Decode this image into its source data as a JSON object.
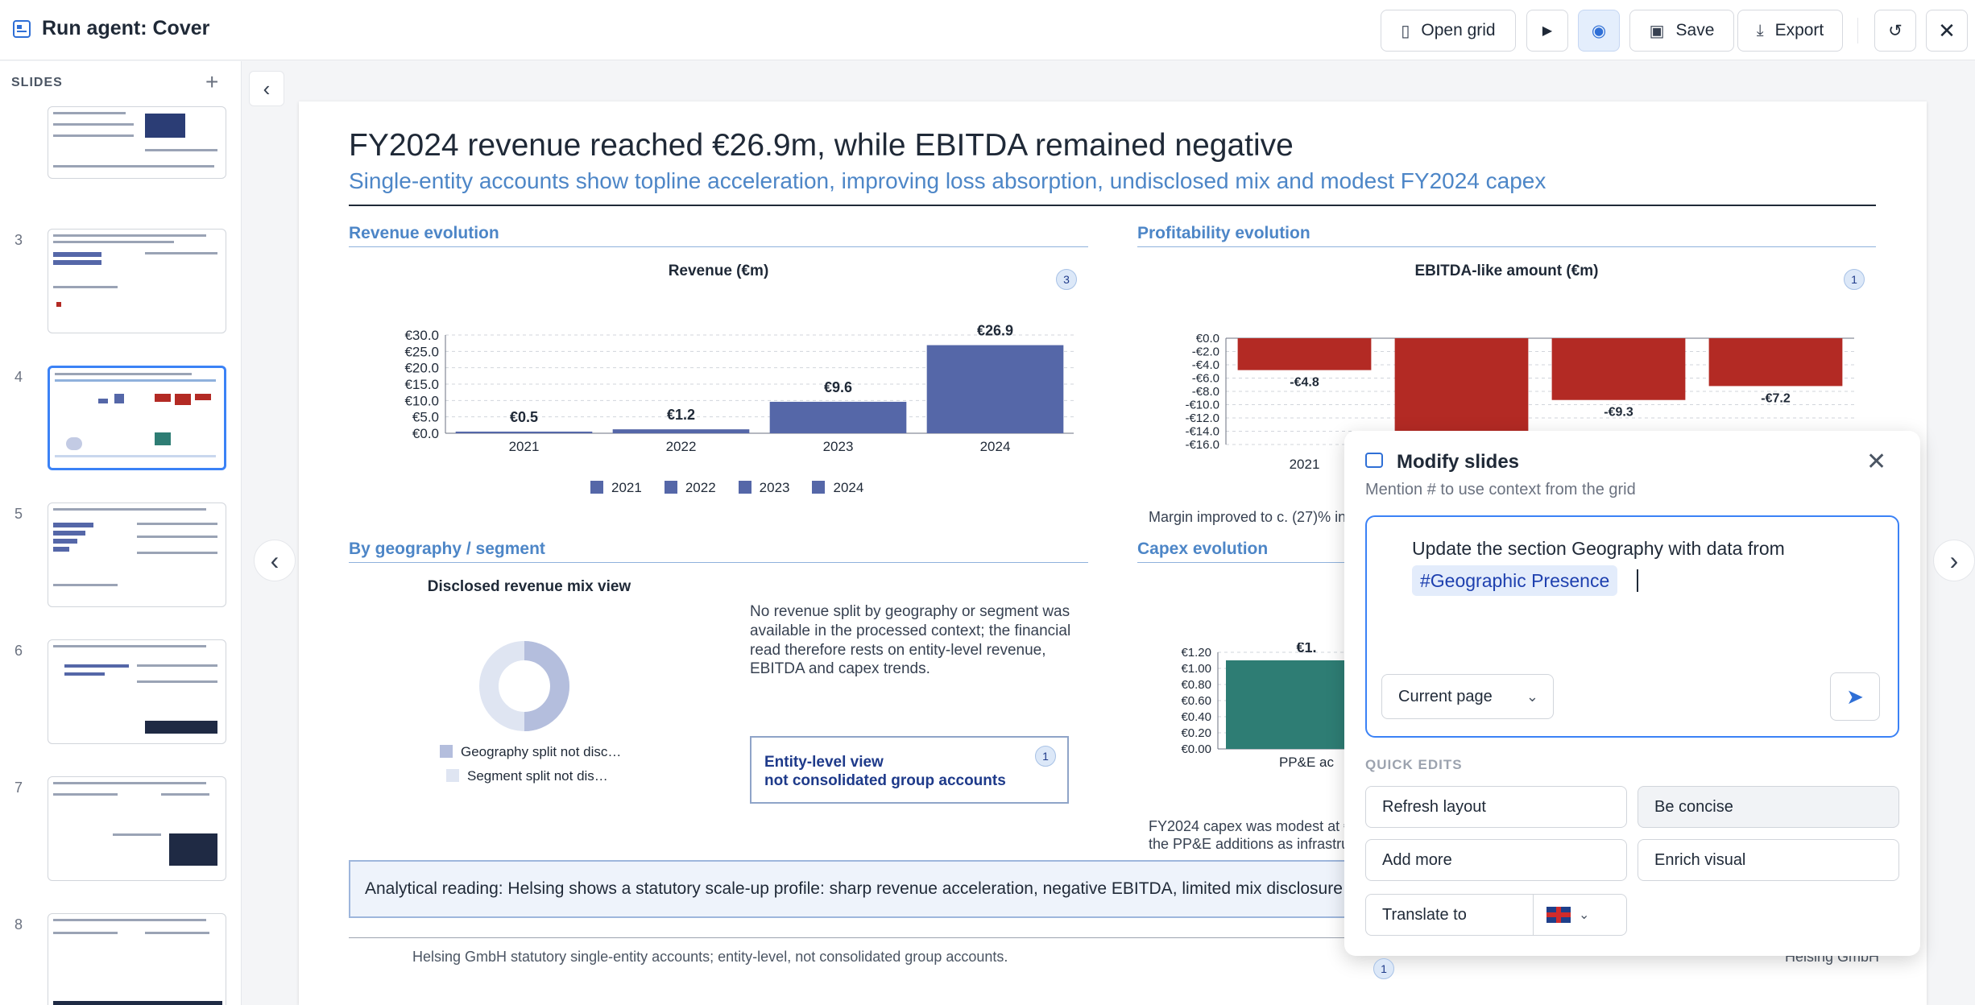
{
  "header": {
    "title": "Run agent: Cover",
    "open_grid": "Open grid",
    "save": "Save",
    "export": "Export"
  },
  "sidebar": {
    "title": "SLIDES",
    "slides": [
      {
        "num": "3"
      },
      {
        "num": "4",
        "active": true
      },
      {
        "num": "5"
      },
      {
        "num": "6"
      },
      {
        "num": "7"
      },
      {
        "num": "8"
      }
    ]
  },
  "slide": {
    "title": "FY2024 revenue reached €26.9m, while EBITDA remained negative",
    "subtitle": "Single-entity accounts show topline acceleration, improving loss absorption, undisclosed mix and modest FY2024 capex",
    "sections": {
      "revenue": "Revenue evolution",
      "profitability": "Profitability evolution",
      "geography": "By geography / segment",
      "capex": "Capex evolution"
    },
    "revenue_chart_title": "Revenue (€m)",
    "ebitda_chart_title": "EBITDA-like amount (€m)",
    "revenue_badge": "3",
    "ebitda_badge": "1",
    "margin_note": "Margin improved to c. (27)% in",
    "mix_title": "Disclosed revenue mix view",
    "mix_legend": [
      "Geography split not disc…",
      "Segment split not dis…"
    ],
    "mix_note": "No revenue split by geography or segment was available in the processed context; the financial read therefore rests on entity-level revenue, EBITDA and capex trends.",
    "entity_line1": "Entity-level view",
    "entity_line2": "not consolidated group accounts",
    "entity_badge": "1",
    "capex_note1": "FY2024 capex was modest at €",
    "capex_note2": "the PP&E additions as infrastru",
    "capex_label_partial": "€1.",
    "capex_cat_partial": "PP&E ac",
    "reading": "Analytical reading: Helsing shows a statutory scale-up profile: sharp revenue acceleration, negative EBITDA, limited mix disclosure and modest F",
    "footer_left": "Helsing GmbH statutory single-entity accounts; entity-level, not consolidated group accounts.",
    "footer_right": "Helsing GmbH",
    "footer_badge": "1"
  },
  "chart_data": [
    {
      "type": "bar",
      "title": "Revenue (€m)",
      "categories": [
        "2021",
        "2022",
        "2023",
        "2024"
      ],
      "values": [
        0.5,
        1.2,
        9.6,
        26.9
      ],
      "labels": [
        "€0.5",
        "€1.2",
        "€9.6",
        "€26.9"
      ],
      "y_ticks": [
        "€30.0",
        "€25.0",
        "€20.0",
        "€15.0",
        "€10.0",
        "€5.0",
        "€0.0"
      ],
      "ylim": [
        0,
        30
      ],
      "legend": [
        "2021",
        "2022",
        "2023",
        "2024"
      ],
      "color": "#5567a8"
    },
    {
      "type": "bar",
      "title": "EBITDA-like amount (€m)",
      "categories": [
        "2021",
        "2022",
        "2023",
        "2024"
      ],
      "values": [
        -4.8,
        -16.0,
        -9.3,
        -7.2
      ],
      "labels": [
        "-€4.8",
        "",
        "-€9.3",
        "-€7.2"
      ],
      "y_ticks": [
        "€0.0",
        "-€2.0",
        "-€4.0",
        "-€6.0",
        "-€8.0",
        "-€10.0",
        "-€12.0",
        "-€14.0",
        "-€16.0"
      ],
      "ylim": [
        -16,
        0
      ],
      "color": "#b32a24"
    },
    {
      "type": "bar",
      "title": "Capex evolution",
      "categories": [
        "PP&E ac"
      ],
      "values": [
        1.1
      ],
      "y_ticks": [
        "€1.20",
        "€1.00",
        "€0.80",
        "€0.60",
        "€0.40",
        "€0.20",
        "€0.00"
      ],
      "ylim": [
        0,
        1.2
      ],
      "color": "#2e7d74"
    }
  ],
  "panel": {
    "title": "Modify slides",
    "subtitle": "Mention # to use context from the grid",
    "input_text": "Update the section Geography with data from",
    "chip": "#Geographic Presence",
    "scope": "Current page",
    "quick_edits_title": "QUICK EDITS",
    "quick_edits": [
      "Refresh layout",
      "Be concise",
      "Add more",
      "Enrich visual",
      "Translate to"
    ]
  }
}
